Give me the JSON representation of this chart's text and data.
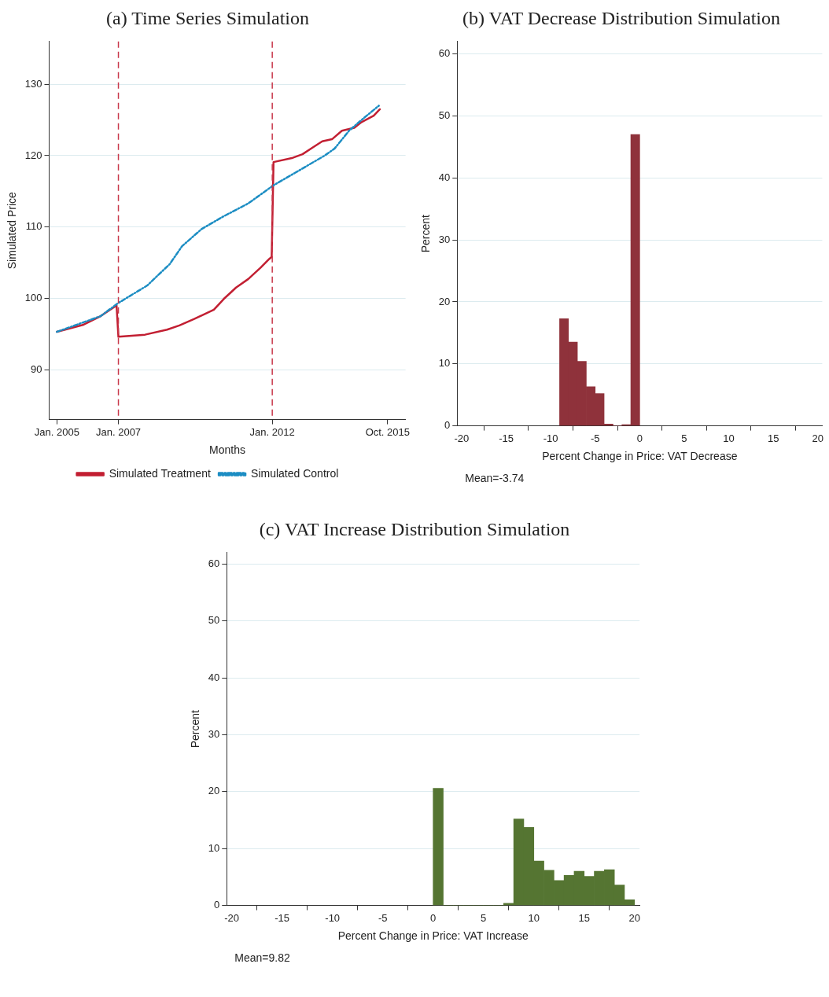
{
  "chart_data": [
    {
      "type": "line",
      "title": "(a) Time Series Simulation",
      "xlabel": "Months",
      "ylabel": "Simulated Price",
      "xlim": [
        "2004-10-01",
        "2016-05-01"
      ],
      "ylim": [
        83,
        136
      ],
      "xticks": [
        {
          "value": "2005-01-01",
          "label": "Jan. 2005"
        },
        {
          "value": "2007-01-01",
          "label": "Jan. 2007"
        },
        {
          "value": "2012-01-01",
          "label": "Jan. 2012"
        },
        {
          "value": "2015-10-01",
          "label": "Oct. 2015"
        }
      ],
      "yticks": [
        90,
        100,
        110,
        120,
        130
      ],
      "grid": "y",
      "legend": "bottom",
      "ref_lines": [
        {
          "axis": "x",
          "value": "2007-01-01",
          "color": "#c8374a",
          "line_style": "dashed"
        },
        {
          "axis": "x",
          "value": "2012-01-01",
          "color": "#c8374a",
          "line_style": "dashed"
        }
      ],
      "series": [
        {
          "name": "Simulated Treatment",
          "color": "#c21f32",
          "line_style": "solid",
          "x": [
            "2005-01-01",
            "2005-11-13",
            "2006-06-04",
            "2006-12-10",
            "2007-01-01",
            "2007-11-13",
            "2008-08-01",
            "2008-12-25",
            "2009-06-19",
            "2010-02-07",
            "2010-06-04",
            "2010-10-28",
            "2011-03-22",
            "2011-08-16",
            "2011-11-25",
            "2011-12-25",
            "2012-01-16",
            "2012-09-01",
            "2012-12-25",
            "2013-04-19",
            "2013-08-16",
            "2013-12-10",
            "2014-04-07",
            "2014-09-01",
            "2014-11-25",
            "2015-04-19",
            "2015-07-01"
          ],
          "values": [
            95.3,
            96.3,
            97.5,
            99.0,
            94.6,
            94.9,
            95.6,
            96.2,
            97.1,
            98.4,
            99.9,
            101.5,
            102.7,
            104.3,
            105.5,
            105.8,
            119.1,
            119.7,
            120.2,
            121.1,
            122.0,
            122.3,
            123.5,
            123.9,
            124.7,
            125.6,
            126.5
          ]
        },
        {
          "name": "Simulated Control",
          "color": "#1c8dc3",
          "line_style": "dashdot",
          "x": [
            "2005-01-01",
            "2006-06-04",
            "2006-12-25",
            "2007-12-10",
            "2008-09-01",
            "2009-01-25",
            "2009-09-13",
            "2010-06-04",
            "2011-03-22",
            "2012-01-10",
            "2012-09-28",
            "2013-09-13",
            "2014-01-10",
            "2014-07-01",
            "2014-11-25",
            "2015-06-19"
          ],
          "values": [
            95.3,
            97.5,
            99.3,
            101.8,
            104.8,
            107.3,
            109.7,
            111.5,
            113.3,
            115.8,
            117.6,
            120.0,
            121.0,
            123.5,
            125.0,
            127.0
          ]
        }
      ]
    },
    {
      "type": "histogram",
      "title": "(b) VAT Decrease Distribution Simulation",
      "xlabel": "Percent Change in Price: VAT Decrease",
      "ylabel": "Percent",
      "xlim": [
        -20.5,
        20.5
      ],
      "ylim": [
        0,
        62
      ],
      "xticks": [
        -20,
        -15,
        -10,
        -5,
        0,
        5,
        10,
        15,
        20
      ],
      "yticks": [
        0,
        10,
        20,
        30,
        40,
        50,
        60
      ],
      "grid": "y",
      "color": "#8f323b",
      "bins": [
        -9,
        -8,
        -7,
        -6,
        -5,
        -4,
        -3,
        -2,
        -1,
        0
      ],
      "values": [
        17.3,
        13.5,
        10.4,
        6.3,
        5.2,
        0.3,
        0,
        0.2,
        47
      ],
      "annotations": [
        "Mean=-3.74"
      ]
    },
    {
      "type": "histogram",
      "title": "(c) VAT Increase Distribution Simulation",
      "xlabel": "Percent Change in Price: VAT Increase",
      "ylabel": "Percent",
      "xlim": [
        -20.5,
        20.5
      ],
      "ylim": [
        0,
        62
      ],
      "xticks": [
        -20,
        -15,
        -10,
        -5,
        0,
        5,
        10,
        15,
        20
      ],
      "yticks": [
        0,
        10,
        20,
        30,
        40,
        50,
        60
      ],
      "grid": "y",
      "color": "#557532",
      "bins": [
        0,
        1,
        2,
        3,
        4,
        5,
        6,
        7,
        8,
        9,
        10,
        11,
        12,
        13,
        14,
        15,
        16,
        17,
        18,
        19,
        20
      ],
      "values": [
        20.6,
        0,
        0,
        0,
        0,
        0,
        0,
        0.4,
        15.2,
        13.7,
        7.8,
        6.2,
        4.4,
        5.3,
        6.0,
        5.1,
        6.0,
        6.3,
        3.6,
        1.0
      ],
      "annotations": [
        "Mean=9.82"
      ]
    }
  ]
}
